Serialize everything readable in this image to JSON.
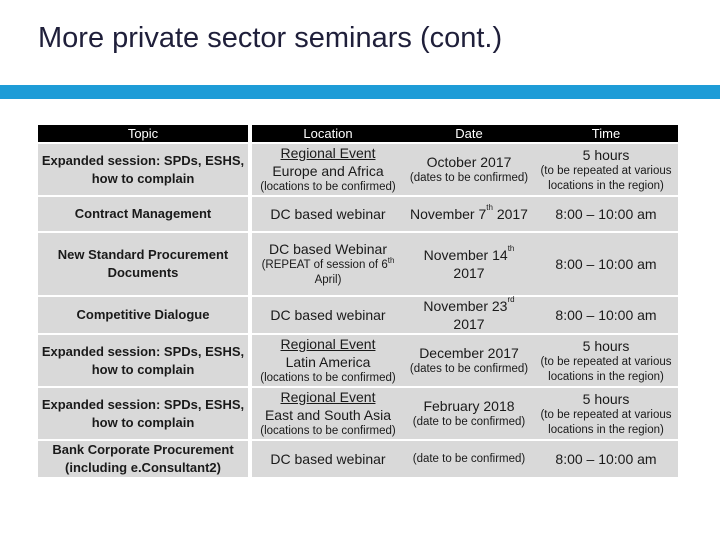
{
  "slide": {
    "title": "More private sector seminars (cont.)"
  },
  "table": {
    "headers": [
      "Topic",
      "Location",
      "Date",
      "Time"
    ],
    "rows": [
      {
        "topic": "Expanded session: SPDs, ESHS, how to complain",
        "location_event": "Regional Event",
        "location_region": "Europe and Africa",
        "location_note": "(locations to be confirmed)",
        "date_main": "October 2017",
        "date_note": "(dates to be confirmed)",
        "time_main": "5 hours",
        "time_note": "(to be repeated at various locations in the region)"
      },
      {
        "topic": "Contract Management",
        "location_main": "DC based webinar",
        "date_main": "November 7",
        "date_sup": "th",
        "date_tail": " 2017",
        "time_main": "8:00 – 10:00 am"
      },
      {
        "topic": "New Standard Procurement Documents",
        "location_main": "DC based Webinar",
        "location_note_a": "(REPEAT of session of 6",
        "location_note_sup": "th",
        "location_note_b": " April)",
        "date_main": "November 14",
        "date_sup": "th",
        "date_line2": "2017",
        "time_main": "8:00 – 10:00 am"
      },
      {
        "topic": "Competitive Dialogue",
        "location_main": "DC based webinar",
        "date_main": "November 23",
        "date_sup": "rd",
        "date_line2": "2017",
        "time_main": "8:00 – 10:00 am"
      },
      {
        "topic": "Expanded session: SPDs, ESHS, how to complain",
        "location_event": "Regional Event",
        "location_region": "Latin America",
        "location_note": "(locations to be confirmed)",
        "date_main": "December 2017",
        "date_note": "(dates to be confirmed)",
        "time_main": "5 hours",
        "time_note": "(to be repeated at various locations in the region)"
      },
      {
        "topic": "Expanded session: SPDs, ESHS, how to complain",
        "location_event": "Regional Event",
        "location_region": "East and South Asia",
        "location_note": "(locations to be confirmed)",
        "date_main": "February 2018",
        "date_note": "(date to be confirmed)",
        "time_main": "5 hours",
        "time_note": "(to be repeated at various locations in the region)"
      },
      {
        "topic": "Bank Corporate Procurement (including e.Consultant2)",
        "location_main": "DC based webinar",
        "date_note": "(date to be confirmed)",
        "time_main": "8:00 – 10:00 am"
      }
    ]
  },
  "colors": {
    "accent_bar": "#1e9cd7",
    "header_bg": "#000000",
    "cell_bg": "#d9d9d9"
  }
}
